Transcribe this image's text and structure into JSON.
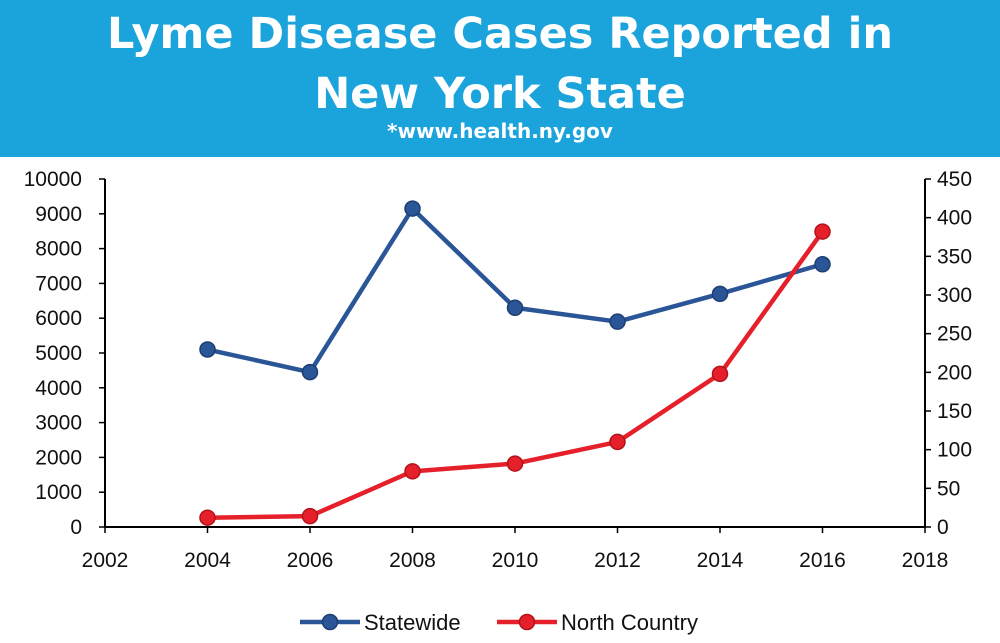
{
  "header": {
    "title_line1": "Lyme Disease Cases Reported in",
    "title_line2": "New York State",
    "source": "*www.health.ny.gov"
  },
  "colors": {
    "header_bg": "#1ba3dc",
    "statewide": "#2a5596",
    "north_country": "#e5202a"
  },
  "chart_data": {
    "type": "line",
    "title": "Lyme Disease Cases Reported in New York State",
    "x": [
      2004,
      2006,
      2008,
      2010,
      2012,
      2014,
      2016
    ],
    "xlim": [
      2002,
      2018
    ],
    "x_ticks": [
      "2002",
      "2004",
      "2006",
      "2008",
      "2010",
      "2012",
      "2014",
      "2016",
      "2018"
    ],
    "y_left": {
      "lim": [
        0,
        10000
      ],
      "ticks": [
        "0",
        "1000",
        "2000",
        "3000",
        "4000",
        "5000",
        "6000",
        "7000",
        "8000",
        "9000",
        "10000"
      ]
    },
    "y_right": {
      "lim": [
        0,
        450
      ],
      "ticks": [
        "0",
        "50",
        "100",
        "150",
        "200",
        "250",
        "300",
        "350",
        "400",
        "450"
      ]
    },
    "series": [
      {
        "name": "Statewide",
        "axis": "left",
        "values": [
          5100,
          4450,
          9150,
          6300,
          5900,
          6700,
          7550
        ]
      },
      {
        "name": "North Country",
        "axis": "right",
        "values": [
          12,
          14,
          72,
          82,
          110,
          198,
          382
        ]
      }
    ],
    "legend": {
      "position": "bottom"
    },
    "grid": false
  }
}
